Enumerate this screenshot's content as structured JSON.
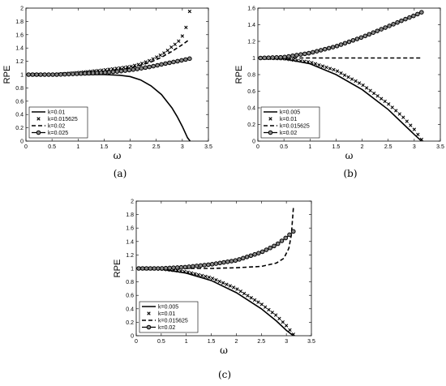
{
  "chart_data": [
    {
      "id": "a",
      "caption": "(a)",
      "type": "line",
      "xlabel": "ω",
      "ylabel": "RPE",
      "xlim": [
        0,
        3.5
      ],
      "ylim": [
        0,
        2
      ],
      "xticks": [
        0,
        0.5,
        1,
        1.5,
        2,
        2.5,
        3,
        3.5
      ],
      "yticks": [
        0,
        0.2,
        0.4,
        0.6,
        0.8,
        1,
        1.2,
        1.4,
        1.6,
        1.8,
        2
      ],
      "legend_position": "bottom-left",
      "series": [
        {
          "name": "k=0.01",
          "style": "solid",
          "x": [
            0.05,
            0.5,
            1.0,
            1.5,
            1.8,
            2.0,
            2.2,
            2.4,
            2.6,
            2.8,
            2.9,
            3.0,
            3.1,
            3.15
          ],
          "y": [
            1.0,
            1.0,
            1.0,
            1.0,
            0.99,
            0.97,
            0.92,
            0.83,
            0.7,
            0.5,
            0.37,
            0.22,
            0.05,
            0.0
          ]
        },
        {
          "name": "k=0.015625",
          "style": "x-marker",
          "x": [
            0.05,
            0.5,
            1.0,
            1.5,
            2.0,
            2.2,
            2.4,
            2.6,
            2.7,
            2.8,
            2.9,
            2.95,
            3.0,
            3.05,
            3.1,
            3.14
          ],
          "y": [
            1.0,
            1.0,
            1.03,
            1.07,
            1.12,
            1.16,
            1.22,
            1.3,
            1.35,
            1.42,
            1.48,
            1.52,
            1.58,
            1.65,
            1.8,
            1.95
          ]
        },
        {
          "name": "k=0.02",
          "style": "dashed",
          "x": [
            0.05,
            0.5,
            1.0,
            1.5,
            2.0,
            2.2,
            2.4,
            2.6,
            2.8,
            3.0,
            3.14
          ],
          "y": [
            1.0,
            1.0,
            1.02,
            1.05,
            1.1,
            1.14,
            1.19,
            1.26,
            1.35,
            1.45,
            1.53
          ]
        },
        {
          "name": "k=0.025",
          "style": "circle-marker",
          "x": [
            0.05,
            0.3,
            0.6,
            0.9,
            1.2,
            1.5,
            1.8,
            2.1,
            2.4,
            2.7,
            2.9,
            3.14
          ],
          "y": [
            1.0,
            1.0,
            1.0,
            1.01,
            1.02,
            1.03,
            1.05,
            1.08,
            1.12,
            1.17,
            1.2,
            1.24
          ]
        }
      ]
    },
    {
      "id": "b",
      "caption": "(b)",
      "type": "line",
      "xlabel": "ω",
      "ylabel": "RPE",
      "xlim": [
        0,
        3.5
      ],
      "ylim": [
        0,
        1.6
      ],
      "xticks": [
        0,
        0.5,
        1,
        1.5,
        2,
        2.5,
        3,
        3.5
      ],
      "yticks": [
        0,
        0.2,
        0.4,
        0.6,
        0.8,
        1,
        1.2,
        1.4,
        1.6
      ],
      "legend_position": "bottom-left",
      "series": [
        {
          "name": "k=0.005",
          "style": "solid",
          "x": [
            0.05,
            0.5,
            1.0,
            1.5,
            2.0,
            2.5,
            2.8,
            3.0,
            3.14
          ],
          "y": [
            1.0,
            0.99,
            0.93,
            0.8,
            0.62,
            0.38,
            0.2,
            0.08,
            0.0
          ]
        },
        {
          "name": "k=0.01",
          "style": "x-marker",
          "x": [
            0.05,
            0.5,
            1.0,
            1.5,
            2.0,
            2.5,
            2.8,
            3.0,
            3.14
          ],
          "y": [
            1.0,
            0.99,
            0.95,
            0.85,
            0.68,
            0.45,
            0.28,
            0.14,
            0.02
          ]
        },
        {
          "name": "k=0.015625",
          "style": "dashed",
          "x": [
            0.05,
            1.0,
            2.0,
            3.14
          ],
          "y": [
            1.0,
            1.0,
            1.0,
            1.0
          ]
        },
        {
          "name": "k=0.02",
          "style": "circle-marker",
          "x": [
            0.05,
            0.5,
            1.0,
            1.5,
            2.0,
            2.5,
            2.8,
            3.0,
            3.14
          ],
          "y": [
            1.0,
            1.01,
            1.06,
            1.14,
            1.25,
            1.38,
            1.46,
            1.51,
            1.55
          ]
        }
      ]
    },
    {
      "id": "c",
      "caption": "(c)",
      "type": "line",
      "xlabel": "ω",
      "ylabel": "RPE",
      "xlim": [
        0,
        3.5
      ],
      "ylim": [
        0,
        2
      ],
      "xticks": [
        0,
        0.5,
        1,
        1.5,
        2,
        2.5,
        3,
        3.5
      ],
      "yticks": [
        0,
        0.2,
        0.4,
        0.6,
        0.8,
        1,
        1.2,
        1.4,
        1.6,
        1.8,
        2
      ],
      "legend_position": "bottom-left",
      "series": [
        {
          "name": "k=0.005",
          "style": "solid",
          "x": [
            0.05,
            0.5,
            1.0,
            1.5,
            2.0,
            2.5,
            2.8,
            3.0,
            3.14
          ],
          "y": [
            1.0,
            0.99,
            0.93,
            0.82,
            0.64,
            0.4,
            0.22,
            0.08,
            0.0
          ]
        },
        {
          "name": "k=0.01",
          "style": "x-marker",
          "x": [
            0.05,
            0.5,
            1.0,
            1.5,
            2.0,
            2.5,
            2.8,
            3.0,
            3.14
          ],
          "y": [
            1.0,
            0.99,
            0.95,
            0.86,
            0.7,
            0.47,
            0.3,
            0.15,
            0.02
          ]
        },
        {
          "name": "k=0.015625",
          "style": "dashed",
          "x": [
            0.05,
            1.0,
            1.5,
            2.0,
            2.5,
            2.8,
            2.95,
            3.05,
            3.1,
            3.14
          ],
          "y": [
            1.0,
            1.0,
            1.0,
            1.01,
            1.03,
            1.08,
            1.15,
            1.3,
            1.5,
            1.9
          ]
        },
        {
          "name": "k=0.02",
          "style": "circle-marker",
          "x": [
            0.05,
            0.5,
            1.0,
            1.5,
            2.0,
            2.5,
            2.8,
            3.0,
            3.14
          ],
          "y": [
            1.0,
            1.0,
            1.02,
            1.06,
            1.12,
            1.24,
            1.35,
            1.46,
            1.55
          ]
        }
      ]
    }
  ]
}
